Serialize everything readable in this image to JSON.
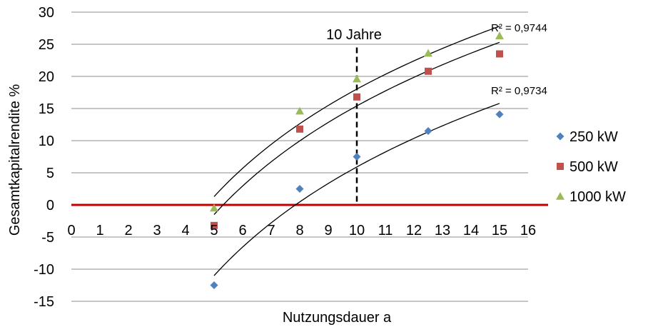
{
  "chart_data": {
    "type": "scatter",
    "title": "",
    "xlabel": "Nutzungsdauer a",
    "ylabel": "Gesamtkapitalrendite %",
    "xlim": [
      0,
      16
    ],
    "ylim": [
      -15,
      30
    ],
    "x_ticks": [
      "0",
      "1",
      "2",
      "3",
      "4",
      "5",
      "6",
      "7",
      "8",
      "9",
      "10",
      "11",
      "12",
      "13",
      "14",
      "15",
      "16"
    ],
    "y_ticks": [
      "30",
      "25",
      "20",
      "15",
      "10",
      "5",
      "0",
      "-5",
      "-10",
      "-15"
    ],
    "grid": "horizontal",
    "legend_position": "right",
    "series": [
      {
        "name": "250 kW",
        "color": "#4f81bd",
        "marker": "diamond",
        "points": [
          [
            5,
            -12.5
          ],
          [
            8,
            2.5
          ],
          [
            10,
            7.5
          ],
          [
            12.5,
            11.5
          ],
          [
            15,
            14.1
          ]
        ]
      },
      {
        "name": "500 kW",
        "color": "#c0504d",
        "marker": "square",
        "points": [
          [
            5,
            -3.2
          ],
          [
            8,
            11.8
          ],
          [
            10,
            16.8
          ],
          [
            12.5,
            20.8
          ],
          [
            15,
            23.5
          ]
        ]
      },
      {
        "name": "1000 kW",
        "color": "#9bbb59",
        "marker": "triangle",
        "points": [
          [
            5,
            -0.5
          ],
          [
            8,
            14.6
          ],
          [
            10,
            19.6
          ],
          [
            12.5,
            23.6
          ],
          [
            15,
            26.3
          ]
        ]
      }
    ],
    "trendlines": [
      {
        "type": "logarithmic",
        "x_range": [
          5,
          15
        ],
        "y_start": -11,
        "y_end": 15.8
      },
      {
        "type": "logarithmic",
        "x_range": [
          5,
          15
        ],
        "y_start": -1.5,
        "y_end": 25.3
      },
      {
        "type": "logarithmic",
        "x_range": [
          5,
          15
        ],
        "y_start": 1.3,
        "y_end": 27.8
      }
    ],
    "annotations": {
      "r2_upper": "R² = 0,9744",
      "r2_lower": "R² = 0,9734",
      "marker_label": "10 Jahre",
      "marker_x": 10,
      "marker_y_top": 24.5,
      "zero_line_color": "#c00000",
      "trendline_color": "#000000"
    }
  }
}
